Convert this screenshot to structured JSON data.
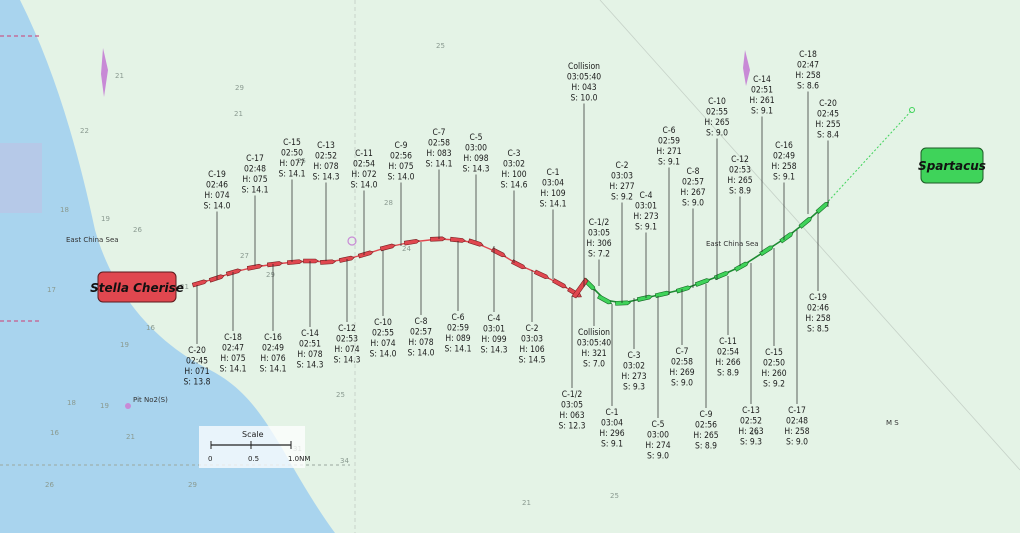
{
  "colors": {
    "land": "#e4f3e6",
    "shallow": "#a9d4ee",
    "ship_a": "#e0474f",
    "ship_b": "#3fd35a"
  },
  "map": {
    "sea_label_left": "East China Sea",
    "sea_label_right": "East China Sea",
    "pit_label": "Pit No2(S)",
    "ms_label": "M S",
    "scale": {
      "title": "Scale",
      "ticks": [
        "0",
        "0.5",
        "1.0NM"
      ]
    },
    "depth_soundings": [
      "25",
      "21",
      "29",
      "21",
      "22",
      "25",
      "28",
      "18",
      "19",
      "26",
      "24",
      "27",
      "29",
      "21",
      "17",
      "17",
      "16",
      "19",
      "25",
      "18",
      "19",
      "16",
      "21",
      "31",
      "34",
      "26",
      "29",
      "21",
      "25",
      "19"
    ]
  },
  "ships": {
    "stella": {
      "name": "Stella Cherise",
      "labels": [
        {
          "id": "C-19",
          "time": "02:46",
          "heading": "H: 074",
          "speed": "S: 14.0"
        },
        {
          "id": "C-17",
          "time": "02:48",
          "heading": "H: 075",
          "speed": "S: 14.1"
        },
        {
          "id": "C-15",
          "time": "02:50",
          "heading": "H: 077",
          "speed": "S: 14.1"
        },
        {
          "id": "C-13",
          "time": "02:52",
          "heading": "H: 078",
          "speed": "S: 14.3"
        },
        {
          "id": "C-11",
          "time": "02:54",
          "heading": "H: 072",
          "speed": "S: 14.0"
        },
        {
          "id": "C-9",
          "time": "02:56",
          "heading": "H: 075",
          "speed": "S: 14.0"
        },
        {
          "id": "C-7",
          "time": "02:58",
          "heading": "H: 083",
          "speed": "S: 14.1"
        },
        {
          "id": "C-5",
          "time": "03:00",
          "heading": "H: 098",
          "speed": "S: 14.3"
        },
        {
          "id": "C-3",
          "time": "03:02",
          "heading": "H: 100",
          "speed": "S: 14.6"
        },
        {
          "id": "C-1",
          "time": "03:04",
          "heading": "H: 109",
          "speed": "S: 14.1"
        },
        {
          "id": "C-20",
          "time": "02:45",
          "heading": "H: 071",
          "speed": "S: 13.8"
        },
        {
          "id": "C-18",
          "time": "02:47",
          "heading": "H: 075",
          "speed": "S: 14.1"
        },
        {
          "id": "C-16",
          "time": "02:49",
          "heading": "H: 076",
          "speed": "S: 14.1"
        },
        {
          "id": "C-14",
          "time": "02:51",
          "heading": "H: 078",
          "speed": "S: 14.3"
        },
        {
          "id": "C-12",
          "time": "02:53",
          "heading": "H: 074",
          "speed": "S: 14.3"
        },
        {
          "id": "C-10",
          "time": "02:55",
          "heading": "H: 074",
          "speed": "S: 14.0"
        },
        {
          "id": "C-8",
          "time": "02:57",
          "heading": "H: 078",
          "speed": "S: 14.0"
        },
        {
          "id": "C-6",
          "time": "02:59",
          "heading": "H: 089",
          "speed": "S: 14.1"
        },
        {
          "id": "C-4",
          "time": "03:01",
          "heading": "H: 099",
          "speed": "S: 14.3"
        },
        {
          "id": "C-2",
          "time": "03:03",
          "heading": "H: 106",
          "speed": "S: 14.5"
        },
        {
          "id": "C-1/2",
          "time": "03:05",
          "heading": "H: 063",
          "speed": "S: 12.3"
        }
      ]
    },
    "spartacus": {
      "name": "Spartacus",
      "labels": [
        {
          "id": "C-18",
          "time": "02:47",
          "heading": "H: 258",
          "speed": "S: 8.6"
        },
        {
          "id": "C-20",
          "time": "02:45",
          "heading": "H: 255",
          "speed": "S: 8.4"
        },
        {
          "id": "C-14",
          "time": "02:51",
          "heading": "H: 261",
          "speed": "S: 9.1"
        },
        {
          "id": "C-10",
          "time": "02:55",
          "heading": "H: 265",
          "speed": "S: 9.0"
        },
        {
          "id": "C-16",
          "time": "02:49",
          "heading": "H: 258",
          "speed": "S: 9.1"
        },
        {
          "id": "C-12",
          "time": "02:53",
          "heading": "H: 265",
          "speed": "S: 8.9"
        },
        {
          "id": "C-6",
          "time": "02:59",
          "heading": "H: 271",
          "speed": "S: 9.1"
        },
        {
          "id": "C-8",
          "time": "02:57",
          "heading": "H: 267",
          "speed": "S: 9.0"
        },
        {
          "id": "C-2",
          "time": "03:03",
          "heading": "H: 277",
          "speed": "S: 9.2"
        },
        {
          "id": "C-4",
          "time": "03:01",
          "heading": "H: 273",
          "speed": "S: 9.1"
        },
        {
          "id": "C-1/2",
          "time": "03:05",
          "heading": "H: 306",
          "speed": "S: 7.2"
        },
        {
          "id": "C-19",
          "time": "02:46",
          "heading": "H: 258",
          "speed": "S: 8.5"
        },
        {
          "id": "C-15",
          "time": "02:50",
          "heading": "H: 260",
          "speed": "S: 9.2"
        },
        {
          "id": "C-11",
          "time": "02:54",
          "heading": "H: 266",
          "speed": "S: 8.9"
        },
        {
          "id": "C-7",
          "time": "02:58",
          "heading": "H: 269",
          "speed": "S: 9.0"
        },
        {
          "id": "C-3",
          "time": "03:02",
          "heading": "H: 273",
          "speed": "S: 9.3"
        },
        {
          "id": "C-1",
          "time": "03:04",
          "heading": "H: 296",
          "speed": "S: 9.1"
        },
        {
          "id": "C-5",
          "time": "03:00",
          "heading": "H: 274",
          "speed": "S: 9.0"
        },
        {
          "id": "C-9",
          "time": "02:56",
          "heading": "H: 265",
          "speed": "S: 8.9"
        },
        {
          "id": "C-13",
          "time": "02:52",
          "heading": "H: 263",
          "speed": "S: 9.3"
        },
        {
          "id": "C-17",
          "time": "02:48",
          "heading": "H: 258",
          "speed": "S: 9.0"
        }
      ]
    },
    "collisions": [
      {
        "title": "Collision",
        "time": "03:05:40",
        "heading": "H: 043",
        "speed": "S: 10.0"
      },
      {
        "title": "Collision",
        "time": "03:05:40",
        "heading": "H: 321",
        "speed": "S: 7.0"
      }
    ]
  }
}
